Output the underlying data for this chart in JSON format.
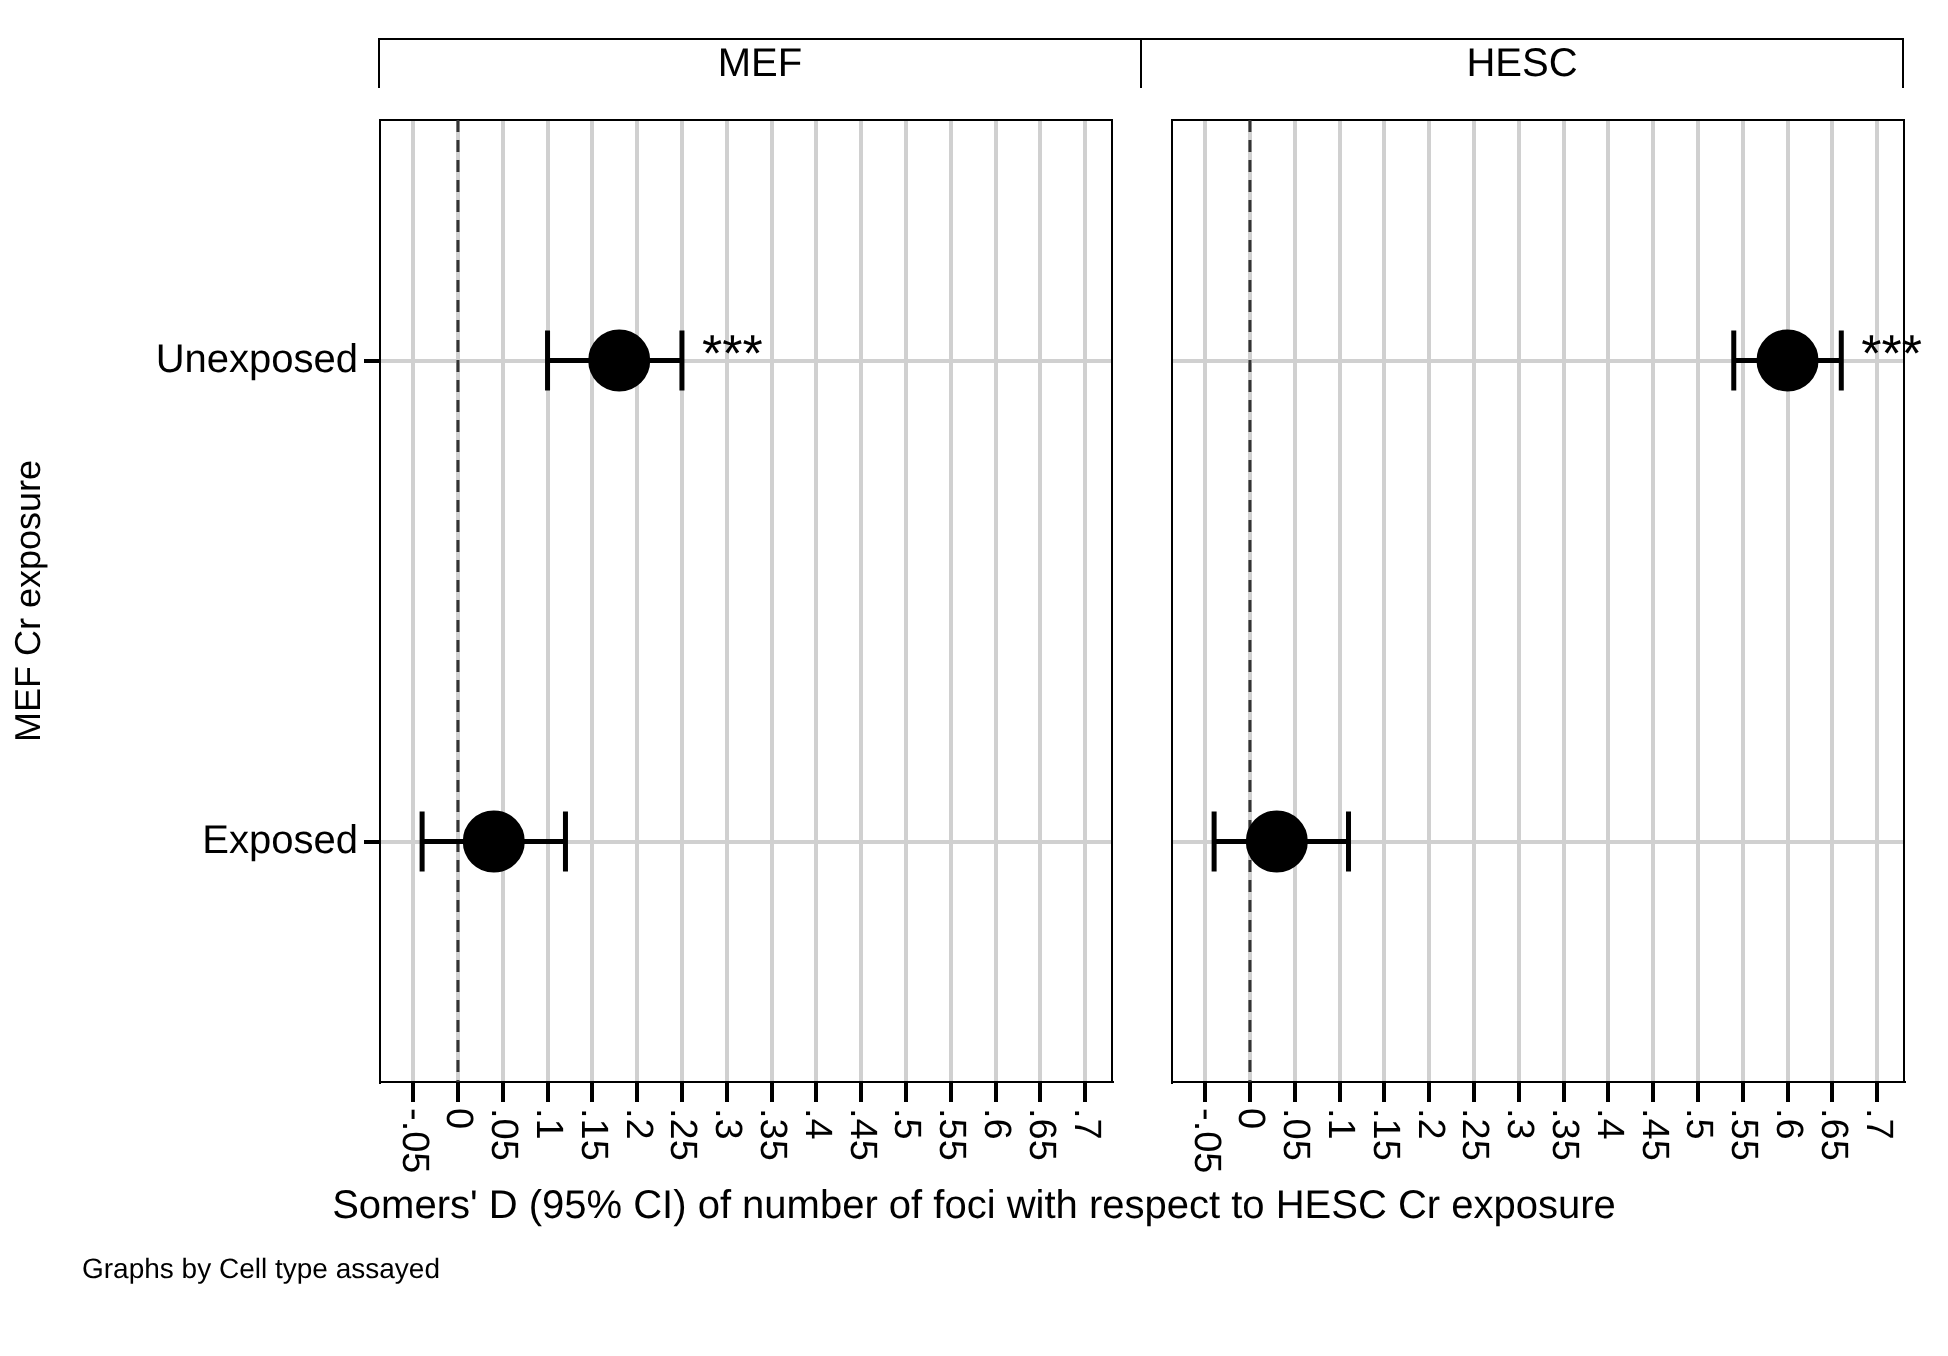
{
  "chart_data": [
    {
      "type": "scatter",
      "orientation": "horizontal",
      "title": "MEF",
      "ylabel": "MEF Cr exposure",
      "xlabel": "Somers' D (95% CI) of number of foci with respect to HESC Cr exposure",
      "categories": [
        "Unexposed",
        "Exposed"
      ],
      "values": [
        0.18,
        0.04
      ],
      "errors": [
        [
          0.1,
          0.25
        ],
        [
          -0.04,
          0.12
        ]
      ],
      "color": "#000000",
      "marker": "circle",
      "xlim": [
        -0.087,
        0.73
      ],
      "xticks": [
        {
          "value": -0.05,
          "label": "-.05"
        },
        0,
        {
          "value": 0.05,
          "label": ".05"
        },
        {
          "value": 0.1,
          "label": ".1"
        },
        {
          "value": 0.15,
          "label": ".15"
        },
        {
          "value": 0.2,
          "label": ".2"
        },
        {
          "value": 0.25,
          "label": ".25"
        },
        {
          "value": 0.3,
          "label": ".3"
        },
        {
          "value": 0.35,
          "label": ".35"
        },
        {
          "value": 0.4,
          "label": ".4"
        },
        {
          "value": 0.45,
          "label": ".45"
        },
        {
          "value": 0.5,
          "label": ".5"
        },
        {
          "value": 0.55,
          "label": ".55"
        },
        {
          "value": 0.6,
          "label": ".6"
        },
        {
          "value": 0.65,
          "label": ".65"
        },
        {
          "value": 0.7,
          "label": ".7"
        }
      ],
      "grid": true,
      "ref_lines": [
        {
          "axis": "x",
          "value": 0,
          "line_style": "dashed",
          "color": "#333333"
        }
      ],
      "annotations": [
        {
          "text": "***",
          "x": 0.25,
          "y": "Unexposed"
        },
        "Graphs by Cell type assayed"
      ]
    },
    {
      "type": "scatter",
      "orientation": "horizontal",
      "title": "HESC",
      "categories": [
        "Unexposed",
        "Exposed"
      ],
      "values": [
        0.6,
        0.03
      ],
      "errors": [
        [
          0.54,
          0.66
        ],
        [
          -0.04,
          0.11
        ]
      ],
      "color": "#000000",
      "marker": "circle",
      "xlim": [
        -0.087,
        0.73
      ],
      "xticks": [
        {
          "value": -0.05,
          "label": "-.05"
        },
        0,
        {
          "value": 0.05,
          "label": ".05"
        },
        {
          "value": 0.1,
          "label": ".1"
        },
        {
          "value": 0.15,
          "label": ".15"
        },
        {
          "value": 0.2,
          "label": ".2"
        },
        {
          "value": 0.25,
          "label": ".25"
        },
        {
          "value": 0.3,
          "label": ".3"
        },
        {
          "value": 0.35,
          "label": ".35"
        },
        {
          "value": 0.4,
          "label": ".4"
        },
        {
          "value": 0.45,
          "label": ".45"
        },
        {
          "value": 0.5,
          "label": ".5"
        },
        {
          "value": 0.55,
          "label": ".55"
        },
        {
          "value": 0.6,
          "label": ".6"
        },
        {
          "value": 0.65,
          "label": ".65"
        },
        {
          "value": 0.7,
          "label": ".7"
        }
      ],
      "grid": true,
      "tick_labels": "x",
      "ref_lines": [
        {
          "axis": "x",
          "value": 0,
          "line_style": "dashed",
          "color": "#333333"
        }
      ],
      "annotations": [
        {
          "text": "***",
          "x": 0.66,
          "y": "Unexposed"
        }
      ]
    }
  ]
}
